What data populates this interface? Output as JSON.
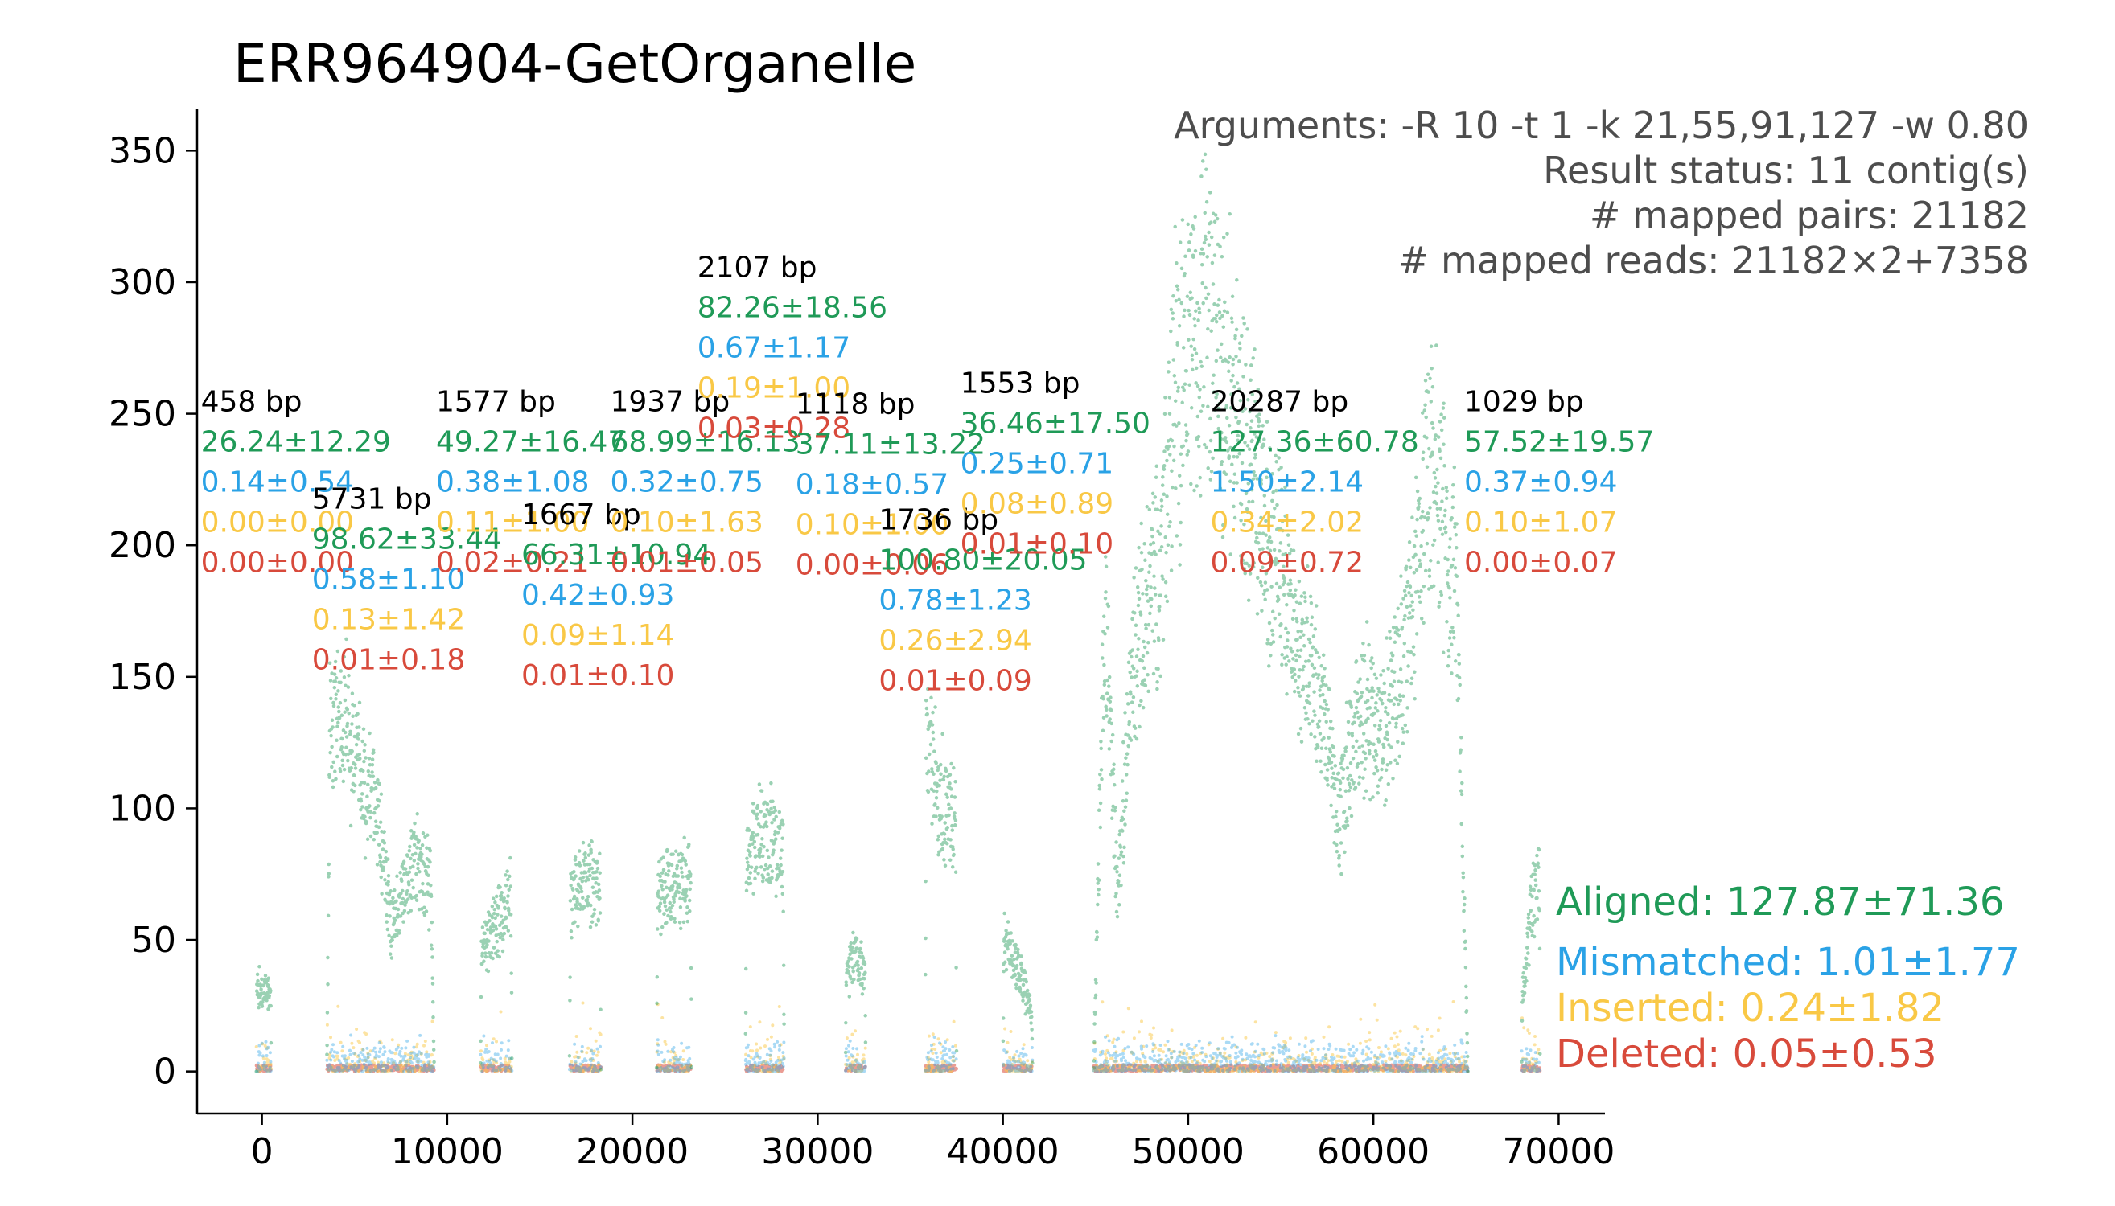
{
  "colors": {
    "aligned": "#1f9a57",
    "mismatched": "#2aa2e6",
    "inserted": "#f9c846",
    "deleted": "#d84a3b",
    "text_dark": "#000000",
    "text_gray": "#4d4d4d"
  },
  "chart_data": {
    "type": "scatter",
    "title": "ERR964904-GetOrganelle",
    "xlabel": "",
    "ylabel": "",
    "xlim": [
      -3500,
      72500
    ],
    "ylim": [
      -16,
      366
    ],
    "x_ticks": [
      0,
      10000,
      20000,
      30000,
      40000,
      50000,
      60000,
      70000
    ],
    "y_ticks": [
      0,
      50,
      100,
      150,
      200,
      250,
      300,
      350
    ],
    "grid": false,
    "info": [
      "Arguments: -R 10 -t 1 -k 21,55,91,127 -w 0.80",
      "Result status: 11 contig(s)",
      "# mapped pairs: 21182",
      "# mapped reads: 21182×2+7358"
    ],
    "legend": [
      {
        "series": "aligned",
        "text": "Aligned: 127.87±71.36"
      },
      {
        "series": "mismatched",
        "text": "Mismatched: 1.01±1.77"
      },
      {
        "series": "inserted",
        "text": "Inserted: 0.24±1.82"
      },
      {
        "series": "deleted",
        "text": "Deleted: 0.05±0.53"
      }
    ],
    "legend_position": "bottom-right",
    "contigs": [
      {
        "length": "458 bp",
        "start": -300,
        "end": 500,
        "aligned": "26.24±12.29",
        "mismatched": "0.14±0.54",
        "inserted": "0.00±0.00",
        "deleted": "0.00±0.00",
        "label_x": -3300,
        "label_y": 251,
        "profile": [
          [
            -300,
            33
          ],
          [
            500,
            30
          ]
        ]
      },
      {
        "length": "5731 bp",
        "start": 3500,
        "end": 9300,
        "aligned": "98.62±33.44",
        "mismatched": "0.58±1.10",
        "inserted": "0.13±1.42",
        "deleted": "0.01±0.18",
        "label_x": 2700,
        "label_y": 214,
        "profile": [
          [
            3500,
            130
          ],
          [
            4200,
            138
          ],
          [
            5000,
            122
          ],
          [
            5800,
            105
          ],
          [
            6400,
            90
          ],
          [
            7000,
            55
          ],
          [
            7600,
            68
          ],
          [
            8200,
            80
          ],
          [
            8800,
            74
          ],
          [
            9300,
            70
          ]
        ]
      },
      {
        "length": "1577 bp",
        "start": 11800,
        "end": 13500,
        "aligned": "49.27±16.47",
        "mismatched": "0.38±1.08",
        "inserted": "0.11±1.00",
        "deleted": "0.02±0.21",
        "label_x": 9400,
        "label_y": 251,
        "profile": [
          [
            11800,
            45
          ],
          [
            12600,
            55
          ],
          [
            13500,
            65
          ]
        ]
      },
      {
        "length": "1667 bp",
        "start": 16600,
        "end": 18300,
        "aligned": "66.31±10.94",
        "mismatched": "0.42±0.93",
        "inserted": "0.09±1.14",
        "deleted": "0.01±0.10",
        "label_x": 14000,
        "label_y": 208,
        "profile": [
          [
            16600,
            65
          ],
          [
            17400,
            72
          ],
          [
            18300,
            70
          ]
        ]
      },
      {
        "length": "1937 bp",
        "start": 21300,
        "end": 23200,
        "aligned": "68.99±16.13",
        "mismatched": "0.32±0.75",
        "inserted": "0.10±1.63",
        "deleted": "0.01±0.05",
        "label_x": 18800,
        "label_y": 251,
        "profile": [
          [
            21300,
            68
          ],
          [
            22200,
            72
          ],
          [
            23200,
            70
          ]
        ]
      },
      {
        "length": "2107 bp",
        "start": 26100,
        "end": 28200,
        "aligned": "82.26±18.56",
        "mismatched": "0.67±1.17",
        "inserted": "0.19±1.00",
        "deleted": "0.03±0.28",
        "label_x": 23500,
        "label_y": 302,
        "profile": [
          [
            26100,
            80
          ],
          [
            27200,
            90
          ],
          [
            28200,
            80
          ]
        ]
      },
      {
        "length": "1118 bp",
        "start": 31500,
        "end": 32600,
        "aligned": "37.11±13.22",
        "mismatched": "0.18±0.57",
        "inserted": "0.10±1.00",
        "deleted": "0.00±0.06",
        "label_x": 28800,
        "label_y": 250,
        "profile": [
          [
            31500,
            33
          ],
          [
            32000,
            45
          ],
          [
            32600,
            35
          ]
        ]
      },
      {
        "length": "1736 bp",
        "start": 35800,
        "end": 37500,
        "aligned": "100.80±20.05",
        "mismatched": "0.78±1.23",
        "inserted": "0.26±2.94",
        "deleted": "0.01±0.09",
        "label_x": 33300,
        "label_y": 206,
        "profile": [
          [
            35800,
            125
          ],
          [
            36600,
            105
          ],
          [
            37500,
            95
          ]
        ]
      },
      {
        "length": "1553 bp",
        "start": 40000,
        "end": 41600,
        "aligned": "36.46±17.50",
        "mismatched": "0.25±0.71",
        "inserted": "0.08±0.89",
        "deleted": "0.01±0.10",
        "label_x": 37700,
        "label_y": 258,
        "profile": [
          [
            40000,
            50
          ],
          [
            40800,
            40
          ],
          [
            41600,
            20
          ]
        ]
      },
      {
        "length": "20287 bp",
        "start": 44900,
        "end": 65100,
        "aligned": "127.36±60.78",
        "mismatched": "1.50±2.14",
        "inserted": "0.34±2.02",
        "deleted": "0.09±0.72",
        "label_x": 51200,
        "label_y": 251,
        "profile": [
          [
            44900,
            200
          ],
          [
            45600,
            165
          ],
          [
            46200,
            60
          ],
          [
            46800,
            140
          ],
          [
            47600,
            175
          ],
          [
            48400,
            190
          ],
          [
            49200,
            255
          ],
          [
            50000,
            270
          ],
          [
            50800,
            290
          ],
          [
            51400,
            275
          ],
          [
            52000,
            265
          ],
          [
            52800,
            245
          ],
          [
            53600,
            225
          ],
          [
            54400,
            200
          ],
          [
            55200,
            185
          ],
          [
            56000,
            160
          ],
          [
            56800,
            150
          ],
          [
            57600,
            120
          ],
          [
            58200,
            95
          ],
          [
            58800,
            125
          ],
          [
            59600,
            140
          ],
          [
            60400,
            125
          ],
          [
            61200,
            145
          ],
          [
            62000,
            175
          ],
          [
            62800,
            215
          ],
          [
            63400,
            235
          ],
          [
            64000,
            190
          ],
          [
            64600,
            180
          ],
          [
            65100,
            200
          ]
        ]
      },
      {
        "length": "1029 bp",
        "start": 68000,
        "end": 69000,
        "aligned": "57.52±19.57",
        "mismatched": "0.37±0.94",
        "inserted": "0.10±1.07",
        "deleted": "0.00±0.07",
        "label_x": 64900,
        "label_y": 251,
        "profile": [
          [
            68000,
            25
          ],
          [
            68500,
            60
          ],
          [
            69000,
            75
          ]
        ]
      }
    ]
  }
}
